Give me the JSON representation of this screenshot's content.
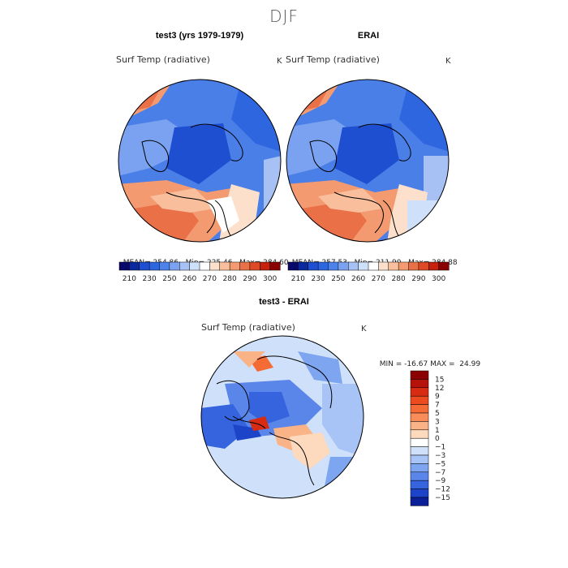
{
  "title": "DJF",
  "panels": [
    {
      "id": "test3",
      "title": "test3 (yrs 1979-1979)",
      "variable": "Surf Temp (radiative)",
      "units": "K",
      "stats": {
        "mean": "254.86",
        "min": "225.46",
        "max": "284.60"
      }
    },
    {
      "id": "erai",
      "title": "ERAI",
      "variable": "Surf Temp (radiative)",
      "units": "K",
      "stats": {
        "mean": "257.53",
        "min": "211.90",
        "max": "284.88"
      }
    }
  ],
  "stat_labels": {
    "mean": "MEAN=",
    "min": "Min=",
    "max": "Max="
  },
  "colorbar_top": {
    "ticks": [
      "210",
      "230",
      "250",
      "260",
      "270",
      "280",
      "290",
      "300"
    ],
    "colors": [
      "#08086b",
      "#0a2a9c",
      "#1f4fd1",
      "#2e66e0",
      "#4c82ea",
      "#7ba2f0",
      "#a7c1f5",
      "#cfe0fa",
      "#ffffff",
      "#fde0cc",
      "#f9bf9c",
      "#f39a70",
      "#ea7048",
      "#dd4a26",
      "#c4210f",
      "#8b0000"
    ]
  },
  "difference": {
    "title": "test3 - ERAI",
    "variable": "Surf Temp (radiative)",
    "units": "K",
    "min_label": "MIN =",
    "min": "-16.67",
    "max_label": "MAX =",
    "max": "24.99",
    "legend_levels": [
      "15",
      "12",
      "9",
      "7",
      "5",
      "3",
      "1",
      "0",
      "−1",
      "−3",
      "−5",
      "−7",
      "−9",
      "−12",
      "−15"
    ],
    "legend_colors": [
      "#8b0000",
      "#b5120b",
      "#d72b12",
      "#eb4b1e",
      "#f56b36",
      "#f88d5a",
      "#fab287",
      "#fdd9bd",
      "#ffffff",
      "#cfe0fa",
      "#a8c3f5",
      "#7ea5f0",
      "#5a86ea",
      "#3664df",
      "#1d43c8",
      "#0b1f98"
    ]
  }
}
